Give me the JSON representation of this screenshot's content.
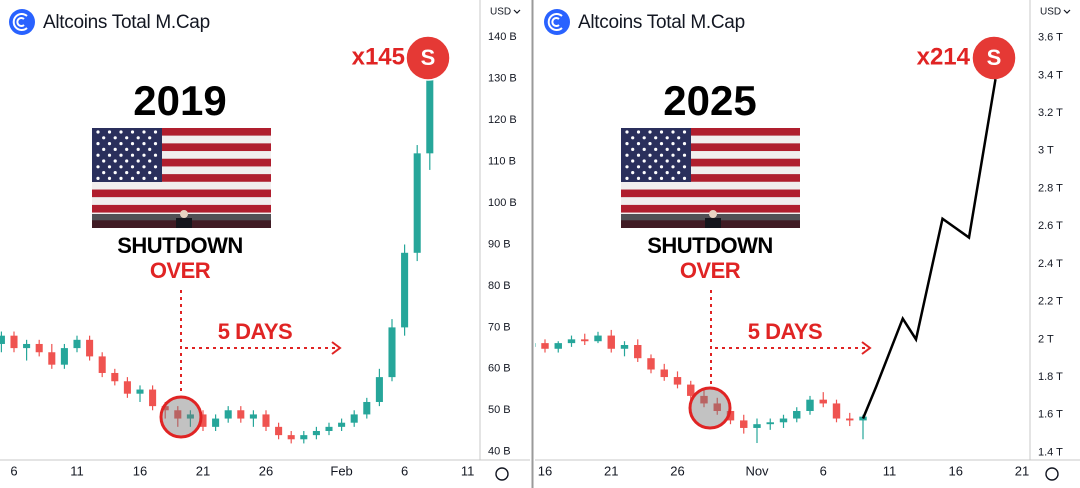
{
  "chart_data": [
    {
      "type": "candlestick",
      "title": "Altcoins Total M.Cap",
      "currency": "USD",
      "annotations": {
        "year": "2019",
        "headline": "SHUTDOWN",
        "subline": "OVER",
        "arrow_label": "5 DAYS",
        "multiplier": "x145",
        "badge": "S"
      },
      "categories": [
        null,
        "6",
        null,
        null,
        null,
        null,
        "11",
        null,
        null,
        null,
        null,
        "16",
        null,
        null,
        null,
        null,
        "21",
        null,
        null,
        null,
        null,
        "26",
        null,
        null,
        null,
        null,
        null,
        "Feb",
        null,
        null,
        null,
        null,
        "6",
        null,
        null,
        null,
        null,
        "11"
      ],
      "open": [
        66,
        68,
        65,
        66,
        64,
        61,
        65,
        67,
        63,
        59,
        57,
        54,
        55,
        51,
        50,
        48,
        49,
        46,
        48,
        50,
        48,
        49,
        46,
        44,
        43,
        44,
        45,
        46,
        47,
        49,
        52,
        58,
        70,
        88,
        112,
        null,
        null,
        null
      ],
      "high": [
        69,
        69,
        67,
        67,
        66,
        66,
        68,
        68,
        64,
        60,
        58,
        56,
        56,
        52,
        51,
        50,
        50,
        49,
        51,
        51,
        50,
        50,
        47,
        45,
        45,
        46,
        47,
        48,
        50,
        53,
        60,
        72,
        90,
        114,
        135,
        null,
        null,
        null
      ],
      "low": [
        64,
        64,
        62,
        63,
        60,
        60,
        64,
        62,
        58,
        56,
        53,
        52,
        50,
        48,
        46,
        46,
        45,
        45,
        47,
        47,
        46,
        45,
        43,
        42,
        42,
        43,
        44,
        45,
        46,
        48,
        51,
        57,
        68,
        86,
        108,
        null,
        null,
        null
      ],
      "close": [
        68,
        65,
        66,
        64,
        61,
        65,
        67,
        63,
        59,
        57,
        54,
        55,
        51,
        50,
        48,
        49,
        46,
        48,
        50,
        48,
        49,
        46,
        44,
        43,
        44,
        45,
        46,
        47,
        49,
        52,
        58,
        70,
        88,
        112,
        133,
        null,
        null,
        null
      ],
      "up_color": "#26a69a",
      "down_color": "#ef5350",
      "ylim": [
        38,
        149
      ],
      "yticks": [
        {
          "value": 40,
          "label": "40 B"
        },
        {
          "value": 50,
          "label": "50 B"
        },
        {
          "value": 60,
          "label": "60 B"
        },
        {
          "value": 70,
          "label": "70 B"
        },
        {
          "value": 80,
          "label": "80 B"
        },
        {
          "value": 90,
          "label": "90 B"
        },
        {
          "value": 100,
          "label": "100 B"
        },
        {
          "value": 110,
          "label": "110 B"
        },
        {
          "value": 120,
          "label": "120 B"
        },
        {
          "value": 130,
          "label": "130 B"
        },
        {
          "value": 140,
          "label": "140 B"
        }
      ],
      "grid": false
    },
    {
      "type": "candlestick",
      "title": "Altcoins Total M.Cap",
      "currency": "USD",
      "annotations": {
        "year": "2025",
        "headline": "SHUTDOWN",
        "subline": "OVER",
        "arrow_label": "5 DAYS",
        "multiplier": "x214",
        "badge": "S"
      },
      "categories": [
        null,
        "16",
        null,
        null,
        null,
        null,
        "21",
        null,
        null,
        null,
        null,
        "26",
        null,
        null,
        null,
        null,
        null,
        "Nov",
        null,
        null,
        null,
        null,
        "6",
        null,
        null,
        null,
        null,
        "11",
        null,
        null,
        null,
        null,
        "16",
        null,
        null,
        null,
        null,
        "21"
      ],
      "open": [
        1.96,
        1.98,
        1.95,
        1.98,
        2.0,
        1.99,
        2.02,
        1.95,
        1.97,
        1.9,
        1.84,
        1.8,
        1.76,
        1.7,
        1.66,
        1.62,
        1.57,
        1.53,
        1.55,
        1.56,
        1.58,
        1.62,
        1.68,
        1.66,
        1.58,
        1.57,
        null,
        null,
        null,
        null,
        null,
        null,
        null,
        null,
        null,
        null,
        null,
        null
      ],
      "high": [
        2.0,
        2.0,
        1.99,
        2.02,
        2.03,
        2.04,
        2.05,
        1.99,
        2.0,
        1.92,
        1.87,
        1.83,
        1.78,
        1.73,
        1.69,
        1.64,
        1.6,
        1.58,
        1.58,
        1.6,
        1.64,
        1.7,
        1.72,
        1.68,
        1.61,
        1.6,
        null,
        null,
        null,
        null,
        null,
        null,
        null,
        null,
        null,
        null,
        null,
        null
      ],
      "low": [
        1.94,
        1.93,
        1.93,
        1.96,
        1.97,
        1.98,
        1.93,
        1.91,
        1.88,
        1.82,
        1.78,
        1.74,
        1.68,
        1.64,
        1.6,
        1.55,
        1.5,
        1.45,
        1.52,
        1.53,
        1.56,
        1.6,
        1.64,
        1.56,
        1.54,
        1.47,
        null,
        null,
        null,
        null,
        null,
        null,
        null,
        null,
        null,
        null,
        null,
        null
      ],
      "close": [
        1.98,
        1.95,
        1.98,
        2.0,
        1.99,
        2.02,
        1.95,
        1.97,
        1.9,
        1.84,
        1.8,
        1.76,
        1.7,
        1.66,
        1.62,
        1.57,
        1.53,
        1.55,
        1.56,
        1.58,
        1.62,
        1.68,
        1.66,
        1.58,
        1.57,
        1.59,
        null,
        null,
        null,
        null,
        null,
        null,
        null,
        null,
        null,
        null,
        null,
        null
      ],
      "up_color": "#26a69a",
      "down_color": "#ef5350",
      "projection": {
        "color": "#000000",
        "values": [
          null,
          null,
          null,
          null,
          null,
          null,
          null,
          null,
          null,
          null,
          null,
          null,
          null,
          null,
          null,
          null,
          null,
          null,
          null,
          null,
          null,
          null,
          null,
          null,
          null,
          1.58,
          1.75,
          1.93,
          2.11,
          2.0,
          2.32,
          2.64,
          2.59,
          2.54,
          2.96,
          3.38,
          null,
          null
        ]
      },
      "ylim": [
        1.36,
        3.8
      ],
      "yticks": [
        {
          "value": 1.4,
          "label": "1.4 T"
        },
        {
          "value": 1.6,
          "label": "1.6 T"
        },
        {
          "value": 1.8,
          "label": "1.8 T"
        },
        {
          "value": 2,
          "label": "2 T"
        },
        {
          "value": 2.2,
          "label": "2.2 T"
        },
        {
          "value": 2.4,
          "label": "2.4 T"
        },
        {
          "value": 2.6,
          "label": "2.6 T"
        },
        {
          "value": 2.8,
          "label": "2.8 T"
        },
        {
          "value": 3,
          "label": "3 T"
        },
        {
          "value": 3.2,
          "label": "3.2 T"
        },
        {
          "value": 3.4,
          "label": "3.4 T"
        },
        {
          "value": 3.6,
          "label": "3.6 T"
        }
      ],
      "grid": false
    }
  ]
}
